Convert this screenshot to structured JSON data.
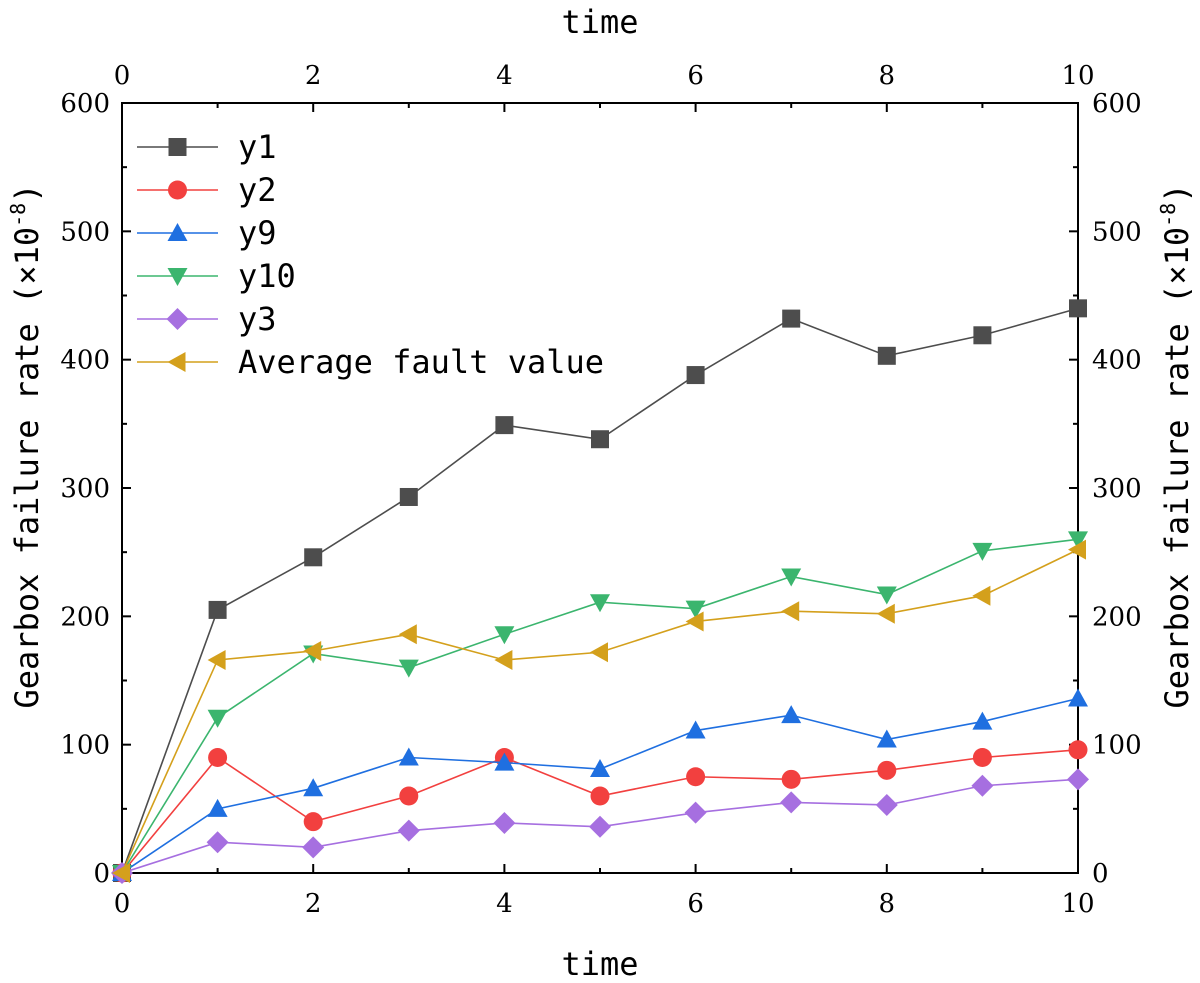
{
  "chart_data": {
    "type": "line",
    "x": [
      0,
      1,
      2,
      3,
      4,
      5,
      6,
      7,
      8,
      9,
      10
    ],
    "xlim": [
      0,
      10
    ],
    "ylim": [
      0,
      600
    ],
    "x_ticks": [
      0,
      2,
      4,
      6,
      8,
      10
    ],
    "y_ticks": [
      0,
      100,
      200,
      300,
      400,
      500,
      600
    ],
    "xlabel_bottom": "time",
    "xlabel_top": "time",
    "ylabel_left": "Gearbox failure rate (×10",
    "ylabel_right": "Gearbox failure rate (×10",
    "ylabel_exponent": "-8",
    "ylabel_close": ")",
    "legend_position": "top-left",
    "grid": false,
    "series": [
      {
        "name": "y1",
        "color": "#4d4d4d",
        "marker": "square",
        "values": [
          0,
          205,
          246,
          293,
          349,
          338,
          388,
          432,
          403,
          419,
          440
        ]
      },
      {
        "name": "y2",
        "color": "#f2403f",
        "marker": "circle",
        "values": [
          0,
          90,
          40,
          60,
          90,
          60,
          75,
          73,
          80,
          90,
          96
        ]
      },
      {
        "name": "y9",
        "color": "#1f6fe0",
        "marker": "triangle-up",
        "values": [
          0,
          50,
          66,
          90,
          86,
          81,
          111,
          123,
          104,
          118,
          136
        ]
      },
      {
        "name": "y10",
        "color": "#3bb56e",
        "marker": "triangle-down",
        "values": [
          0,
          121,
          171,
          160,
          186,
          211,
          206,
          231,
          217,
          251,
          260
        ]
      },
      {
        "name": "y3",
        "color": "#a66fe0",
        "marker": "diamond",
        "values": [
          0,
          24,
          20,
          33,
          39,
          36,
          47,
          55,
          53,
          68,
          73
        ]
      },
      {
        "name": "Average fault value",
        "color": "#d4a01c",
        "marker": "triangle-left",
        "values": [
          0,
          166,
          173,
          186,
          166,
          172,
          196,
          204,
          202,
          216,
          252
        ]
      }
    ]
  }
}
